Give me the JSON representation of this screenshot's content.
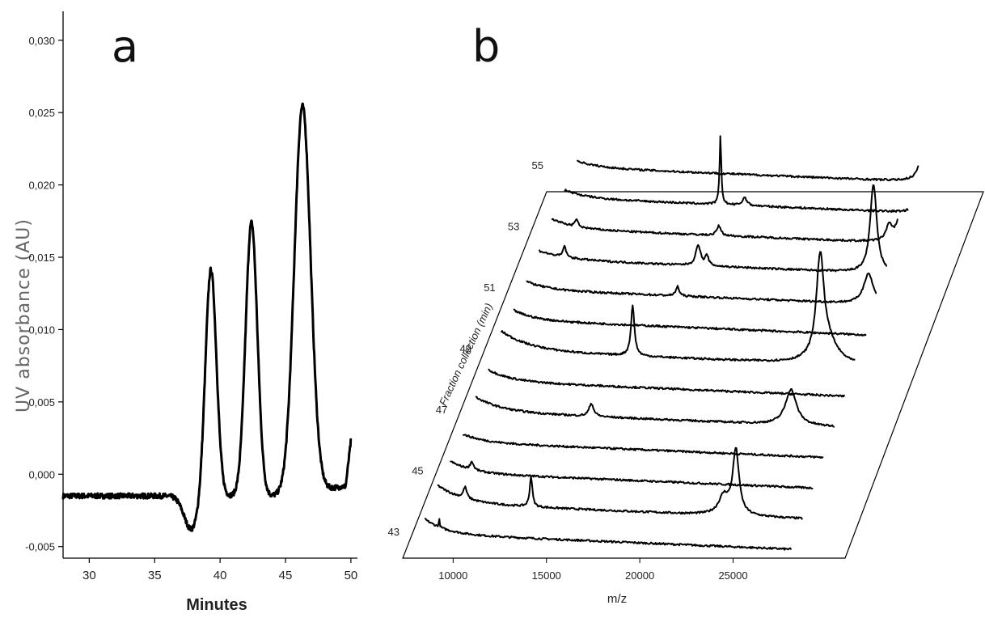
{
  "chart_data": [
    {
      "panel": "a",
      "type": "line",
      "xlabel": "Minutes",
      "ylabel": "UV absorbance (AU)",
      "xlim": [
        28,
        50.5
      ],
      "ylim": [
        -0.0058,
        0.032
      ],
      "x_ticks": [
        "30",
        "35",
        "40",
        "45",
        "50"
      ],
      "y_ticks": [
        "-0,005",
        "0,000",
        "0,005",
        "0,010",
        "0,015",
        "0,020",
        "0,025",
        "0,030"
      ],
      "x_tick_values": [
        30,
        35,
        40,
        45,
        50
      ],
      "y_tick_values": [
        -0.005,
        0,
        0.005,
        0.01,
        0.015,
        0.02,
        0.025,
        0.03
      ],
      "baseline": -0.0015,
      "dip": {
        "x": 37.8,
        "y": -0.0038
      },
      "peaks": [
        {
          "x": 39.3,
          "y": 0.0142
        },
        {
          "x": 42.4,
          "y": 0.0174
        },
        {
          "x": 46.3,
          "y": 0.0252
        }
      ],
      "valleys": [
        {
          "x": 41.4,
          "y": -0.0019
        },
        {
          "x": 44.8,
          "y": -0.0007
        },
        {
          "x": 49.5,
          "y": -0.0008
        }
      ],
      "end": {
        "x": 50,
        "y": 0.0023
      }
    },
    {
      "panel": "b",
      "type": "line",
      "xlabel": "m/z",
      "ylabel": "Fraction collection (min)",
      "x_ticks": [
        "10000",
        "15000",
        "20000",
        "25000"
      ],
      "x_tick_values": [
        10000,
        15000,
        20000,
        25000
      ],
      "mz_range": [
        7500,
        29500
      ],
      "fraction_ticks": [
        "43",
        "45",
        "47",
        "49",
        "51",
        "53",
        "55"
      ],
      "fraction_range": [
        43,
        55
      ],
      "series": [
        {
          "fraction": 43,
          "left_rise": 18,
          "decay": 1200,
          "peaks": [
            {
              "mz": 9000,
              "h": 10,
              "w": 30
            }
          ]
        },
        {
          "fraction": 44,
          "left_rise": 22,
          "decay": 1500,
          "peaks": [
            {
              "mz": 9800,
              "h": 14,
              "w": 120
            },
            {
              "mz": 13600,
              "h": 38,
              "w": 90
            },
            {
              "mz": 24700,
              "h": 22,
              "w": 350
            },
            {
              "mz": 25400,
              "h": 80,
              "w": 220
            }
          ]
        },
        {
          "fraction": 45,
          "left_rise": 14,
          "decay": 1200,
          "peaks": [
            {
              "mz": 9500,
              "h": 10,
              "w": 120
            }
          ]
        },
        {
          "fraction": 46,
          "left_rise": 10,
          "decay": 1200,
          "peaks": []
        },
        {
          "fraction": 47,
          "left_rise": 18,
          "decay": 1500,
          "peaks": [
            {
              "mz": 15000,
              "h": 16,
              "w": 160
            },
            {
              "mz": 26500,
              "h": 44,
              "w": 380
            }
          ]
        },
        {
          "fraction": 48,
          "left_rise": 14,
          "decay": 1300,
          "peaks": []
        },
        {
          "fraction": 49,
          "left_rise": 24,
          "decay": 1700,
          "peaks": [
            {
              "mz": 16000,
              "h": 62,
              "w": 120
            },
            {
              "mz": 26800,
              "h": 120,
              "w": 260
            },
            {
              "mz": 27200,
              "h": 26,
              "w": 700
            }
          ]
        },
        {
          "fraction": 50,
          "left_rise": 12,
          "decay": 1200,
          "peaks": []
        },
        {
          "fraction": 51,
          "left_rise": 10,
          "decay": 1200,
          "peaks": [
            {
              "mz": 17200,
              "h": 12,
              "w": 110
            },
            {
              "mz": 28200,
              "h": 38,
              "w": 330
            }
          ]
        },
        {
          "fraction": 52,
          "left_rise": 10,
          "decay": 1500,
          "peaks": [
            {
              "mz": 10000,
              "h": 14,
              "w": 100
            },
            {
              "mz": 17700,
              "h": 26,
              "w": 160
            },
            {
              "mz": 18200,
              "h": 12,
              "w": 120
            },
            {
              "mz": 27800,
              "h": 110,
              "w": 230
            }
          ]
        },
        {
          "fraction": 53,
          "left_rise": 12,
          "decay": 1200,
          "peaks": [
            {
              "mz": 10000,
              "h": 10,
              "w": 90
            },
            {
              "mz": 18200,
              "h": 12,
              "w": 140
            },
            {
              "mz": 28800,
              "h": 50,
              "w": 320
            },
            {
              "mz": 28000,
              "h": 18,
              "w": 200
            }
          ]
        },
        {
          "fraction": 54,
          "left_rise": 10,
          "decay": 1200,
          "peaks": [
            {
              "mz": 17600,
              "h": 84,
              "w": 60
            },
            {
              "mz": 19000,
              "h": 10,
              "w": 150
            },
            {
              "mz": 29000,
              "h": 18,
              "w": 300
            }
          ]
        },
        {
          "fraction": 55,
          "left_rise": 8,
          "decay": 1200,
          "peaks": [
            {
              "mz": 28800,
              "h": 250,
              "w": 140
            }
          ]
        }
      ]
    }
  ]
}
